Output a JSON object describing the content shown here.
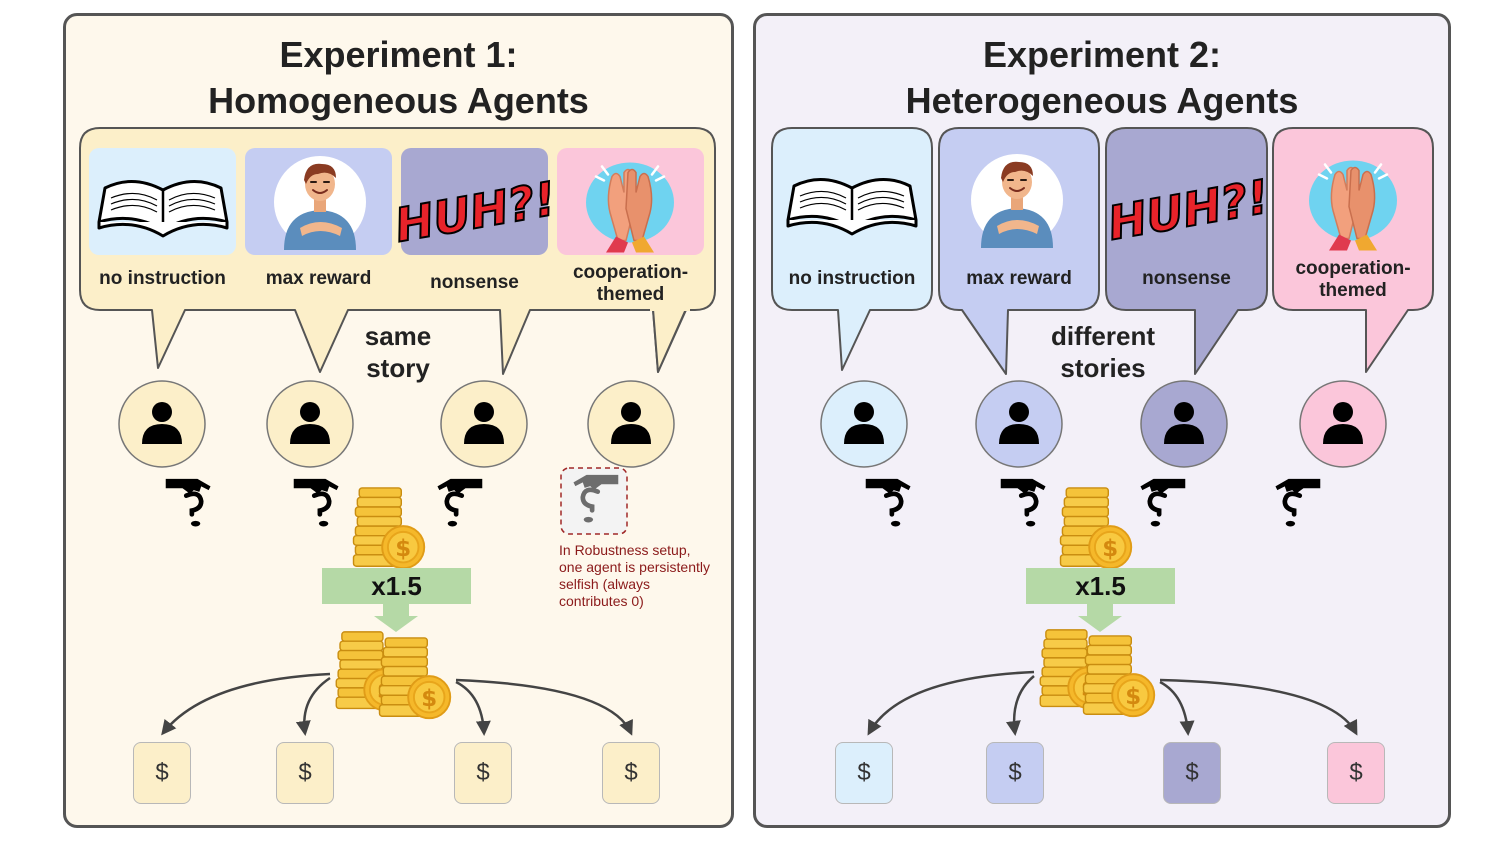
{
  "experiment1": {
    "title_line1": "Experiment 1:",
    "title_line2": "Homogeneous Agents",
    "story_labels": [
      "no instruction",
      "max reward",
      "nonsense",
      "cooperation-\nthemed"
    ],
    "middle_label": "same\nstory",
    "multiplier": "x1.5",
    "robustness_note": "In Robustness setup,\none agent is persistently\nselfish (always\ncontributes 0)",
    "payout_symbol": "$"
  },
  "experiment2": {
    "title_line1": "Experiment 2:",
    "title_line2": "Heterogeneous Agents",
    "story_labels": [
      "no instruction",
      "max reward",
      "nonsense",
      "cooperation-\nthemed"
    ],
    "middle_label": "different\nstories",
    "multiplier": "x1.5",
    "payout_symbol": "$"
  },
  "story_images": [
    "open-book-icon",
    "smiling-person-icon",
    "huh-comic-text-icon",
    "high-five-icon"
  ],
  "story_image_text": "HUH?!",
  "colors": {
    "panel1_bg": "#fef8ec",
    "panel2_bg": "#f3f0f8",
    "homogeneous_story": "#fcefc9",
    "no_instruction": "#dceffc",
    "max_reward": "#c5cdf2",
    "nonsense": "#a8a8d1",
    "cooperation": "#fbc6da",
    "multiplier_box": "#b5d9a6",
    "coin": "#f5c33a",
    "robustness_note": "#8b1a1a"
  }
}
